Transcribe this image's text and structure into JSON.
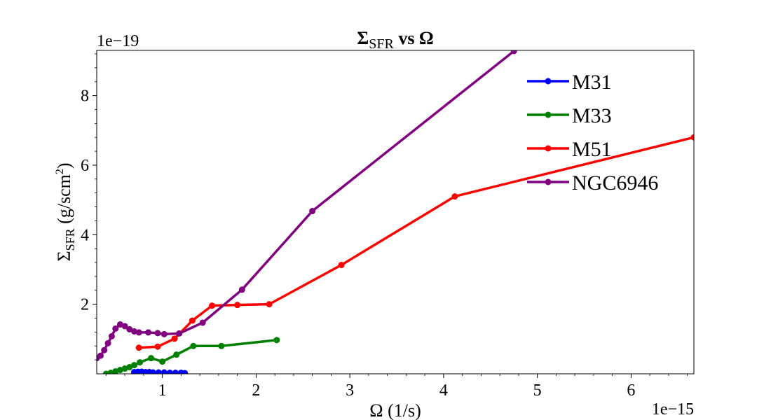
{
  "chart_data": {
    "type": "line",
    "title": {
      "pre": "Σ",
      "sub": "SFR",
      "post": " vs Ω"
    },
    "xlabel": "Ω (1/s)",
    "ylabel": {
      "pre": "Σ",
      "sub": "SFR",
      "mid": " (g/scm",
      "sup": "2",
      "post": ")"
    },
    "x_offset_label": "1e−15",
    "y_offset_label": "1e−19",
    "xlim": [
      0.3,
      6.67
    ],
    "ylim": [
      0.0,
      9.3
    ],
    "x_ticks": [
      1,
      2,
      3,
      4,
      5,
      6
    ],
    "y_ticks": [
      2,
      4,
      6,
      8
    ],
    "x_tick_labels": [
      "1",
      "2",
      "3",
      "4",
      "5",
      "6"
    ],
    "y_tick_labels": [
      "2",
      "4",
      "6",
      "8"
    ],
    "legend_position": "upper right",
    "series": [
      {
        "name": "M31",
        "color": "#0000ff",
        "x": [
          0.7,
          0.74,
          0.78,
          0.82,
          0.86,
          0.9,
          0.96,
          1.02,
          1.08,
          1.14,
          1.2,
          1.24
        ],
        "y": [
          0.05,
          0.06,
          0.06,
          0.05,
          0.05,
          0.04,
          0.04,
          0.04,
          0.03,
          0.03,
          0.03,
          0.02
        ]
      },
      {
        "name": "M33",
        "color": "#008000",
        "x": [
          0.4,
          0.45,
          0.5,
          0.55,
          0.6,
          0.65,
          0.7,
          0.76,
          0.88,
          1.0,
          1.15,
          1.33,
          1.63,
          2.22
        ],
        "y": [
          0.0,
          0.03,
          0.07,
          0.11,
          0.15,
          0.19,
          0.25,
          0.33,
          0.45,
          0.35,
          0.55,
          0.8,
          0.8,
          0.97
        ]
      },
      {
        "name": "M51",
        "color": "#ff0000",
        "x": [
          0.75,
          0.95,
          1.13,
          1.32,
          1.53,
          1.8,
          2.14,
          2.91,
          4.12,
          6.67
        ],
        "y": [
          0.75,
          0.78,
          1.01,
          1.53,
          1.96,
          1.98,
          2.0,
          3.13,
          5.1,
          6.8
        ]
      },
      {
        "name": "NGC6946",
        "color": "#800080",
        "x": [
          0.3,
          0.34,
          0.38,
          0.42,
          0.46,
          0.5,
          0.55,
          0.6,
          0.65,
          0.7,
          0.75,
          0.85,
          0.95,
          1.02,
          1.18,
          1.43,
          1.85,
          2.6,
          4.75
        ],
        "y": [
          0.45,
          0.52,
          0.68,
          0.88,
          1.08,
          1.3,
          1.42,
          1.37,
          1.28,
          1.22,
          1.19,
          1.19,
          1.17,
          1.14,
          1.16,
          1.47,
          2.42,
          4.68,
          9.28
        ]
      }
    ]
  }
}
